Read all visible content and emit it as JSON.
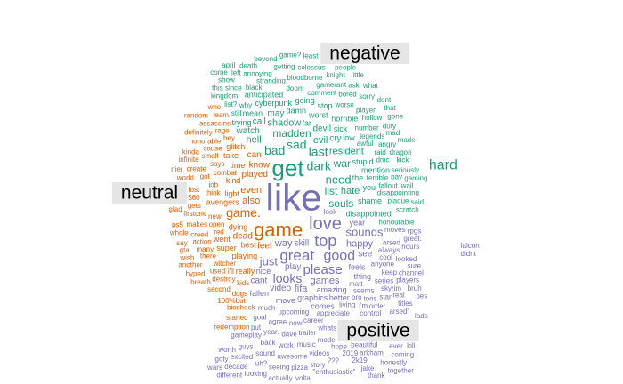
{
  "chart_data": {
    "type": "wordcloud",
    "groups": [
      {
        "name": "negative",
        "color": "#1b9e77",
        "words": [
          "get",
          "dark",
          "bad",
          "sad",
          "need",
          "last",
          "list",
          "madden",
          "souls",
          "war",
          "hate",
          "shadow",
          "evil",
          "resident",
          "hell",
          "devil",
          "watch",
          "cry",
          "call",
          "may",
          "the",
          "damn",
          "worst",
          "disappointed",
          "cyberpunk",
          "stupid",
          "sick",
          "shame",
          "mean",
          "low",
          "trying",
          "far",
          "going",
          "horrible",
          "mention",
          "you",
          "anticipated",
          "stop",
          "terrible",
          "doom",
          "comment",
          "awful",
          "worse",
          "why",
          "number",
          "legends",
          "raid",
          "fallout",
          "dmc",
          "black",
          "stranding",
          "bloodborne",
          "gamerant",
          "bored",
          "disappointing",
          "player",
          "honourable",
          "hollow",
          "angry",
          "plague",
          "kingdom",
          "since",
          "annoying",
          "getting",
          "colossus",
          "knight",
          "list?",
          "ask",
          "sorry",
          "duty",
          "pay",
          "dragon",
          "still",
          "mad",
          "seriously",
          "kick",
          "wall",
          "scratch",
          "show",
          "death",
          "beyond",
          "game?",
          "people",
          "least",
          "little",
          "what",
          "this",
          "dont",
          "that",
          "gone",
          "made",
          "left",
          "gaming",
          "said",
          "come",
          "april",
          "hard"
        ],
        "sizes": [
          26,
          14,
          14,
          14,
          13,
          14,
          12,
          12,
          12,
          12,
          11,
          11,
          11,
          11,
          11,
          10,
          10,
          10,
          10,
          10,
          9,
          9,
          9,
          9,
          9,
          9,
          9,
          9,
          9,
          9,
          9,
          9,
          9,
          9,
          9,
          9,
          9,
          9,
          8,
          8,
          8,
          8,
          8,
          8,
          8,
          8,
          8,
          8,
          8,
          8,
          8,
          8,
          8,
          8,
          8,
          8,
          8,
          8,
          8,
          8,
          8,
          8,
          8,
          8,
          8,
          8,
          8,
          8,
          8,
          8,
          8,
          8,
          8,
          8,
          8,
          8,
          8,
          8,
          8,
          8,
          8,
          8,
          8,
          8,
          8,
          8,
          8,
          8,
          8,
          8,
          8,
          8,
          8,
          8,
          8,
          8
        ]
      },
      {
        "name": "neutral",
        "color": "#d95f02",
        "words": [
          "game",
          "game.",
          "also",
          "even",
          "played",
          "know",
          "feel",
          "dead",
          "can",
          "best",
          "dying",
          "playing",
          "avengers",
          "light",
          "kind",
          "time",
          "take",
          "really",
          "glitch",
          "super",
          "went",
          "combat",
          "witcher",
          "red",
          "open",
          "new",
          "think",
          "job",
          "says",
          "kids",
          "small",
          "cause",
          "hey",
          "rage",
          "dogs",
          "destroy",
          "got",
          "used",
          "there",
          "many",
          "action",
          "honorable",
          "creed",
          "firstone",
          "makes",
          "create",
          "assassins",
          "bioshock",
          "100%but",
          "team",
          "gets",
          "second",
          "definitely",
          "world",
          "infinite",
          "started",
          "kinda",
          "breath",
          "hyped",
          "another",
          "who",
          "$60",
          "wish",
          "lost",
          "random",
          "gta",
          "redemption",
          "whole",
          "say",
          "i'll",
          "ps5",
          "glad",
          "nier"
        ],
        "sizes": [
          22,
          14,
          11,
          11,
          10,
          10,
          10,
          10,
          10,
          9,
          9,
          9,
          9,
          9,
          9,
          9,
          9,
          9,
          9,
          9,
          9,
          8,
          8,
          8,
          8,
          8,
          8,
          8,
          8,
          8,
          8,
          8,
          8,
          8,
          8,
          8,
          8,
          8,
          8,
          8,
          8,
          8,
          8,
          8,
          8,
          8,
          8,
          8,
          8,
          8,
          8,
          8,
          8,
          8,
          8,
          8,
          8,
          8,
          8,
          8,
          8,
          8,
          8,
          8,
          8,
          8,
          8,
          8,
          8,
          8,
          8,
          8,
          8
        ]
      },
      {
        "name": "positive",
        "color": "#7570b3",
        "words": [
          "like",
          "love",
          "top",
          "great",
          "good",
          "please",
          "looks",
          "just",
          "sounds",
          "way",
          "happy",
          "games",
          "fifa",
          "play",
          "skill",
          "video",
          "cant",
          "see",
          "year",
          "amazing",
          "graphics",
          "feels",
          "move",
          "fallen",
          "nice",
          "thing",
          "better",
          "comes",
          "upcoming",
          "moves",
          "look",
          "much",
          "matt",
          "arsed",
          "always",
          "cool",
          "anyone",
          "appreciate",
          "seems",
          "living",
          "career",
          "now",
          "pro",
          "agree",
          "goal",
          "keep",
          "series",
          "whats",
          "trailer",
          "dave",
          "year.",
          "great.",
          "looked",
          "skyrim",
          "tons",
          "hours",
          "order",
          "rpgs",
          "put",
          "control",
          "mode",
          "music",
          "star",
          "work",
          "back",
          "gameplay",
          "sure",
          "channel",
          "players",
          "hope",
          "videos",
          "awesome",
          "sound",
          "guys",
          "bruh",
          "real",
          "titles",
          "arsed\"",
          "beautiful",
          "2019",
          "i'm",
          "???",
          "story",
          "pizza",
          "seeing",
          "\"enthusiastic\"",
          "uh?",
          "excited",
          "worth",
          "arkham",
          "2k19",
          "pes",
          "volta",
          "actually",
          "looking",
          "decade",
          "different",
          "goty",
          "ever",
          "coming",
          "honestly",
          "jake",
          "thank",
          "lads",
          "wars",
          "together",
          "kill",
          "falcon",
          "didnt"
        ],
        "sizes": [
          42,
          20,
          18,
          17,
          16,
          15,
          14,
          13,
          13,
          11,
          11,
          11,
          11,
          10,
          10,
          10,
          10,
          10,
          9,
          9,
          9,
          9,
          9,
          9,
          9,
          9,
          9,
          9,
          8,
          8,
          8,
          8,
          8,
          8,
          8,
          8,
          8,
          8,
          8,
          8,
          8,
          8,
          8,
          8,
          8,
          8,
          8,
          8,
          8,
          8,
          8,
          8,
          8,
          8,
          8,
          8,
          8,
          8,
          8,
          8,
          8,
          8,
          8,
          8,
          8,
          8,
          8,
          8,
          8,
          8,
          8,
          8,
          8,
          8,
          8,
          8,
          8,
          8,
          8,
          8,
          8,
          8,
          8,
          8,
          8,
          8,
          8,
          8,
          8,
          8,
          8,
          8,
          8,
          8,
          8,
          8,
          8,
          8,
          8,
          8,
          8,
          8,
          8,
          8,
          8,
          8,
          8,
          8,
          8,
          8,
          8
        ]
      }
    ]
  }
}
